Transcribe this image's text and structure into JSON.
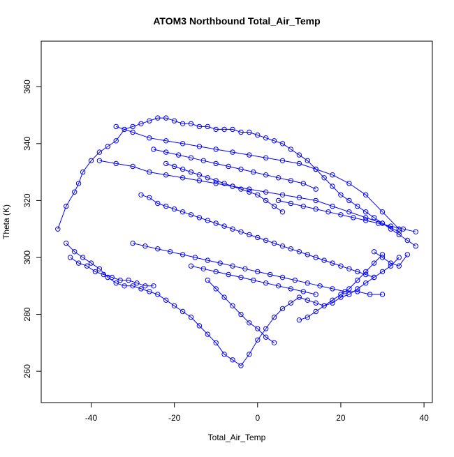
{
  "chart_data": {
    "type": "scatter",
    "title": "ATOM3 Northbound Total_Air_Temp",
    "xlabel": "Total_Air_Temp",
    "ylabel": "Theta (K)",
    "xlim": [
      -52,
      42
    ],
    "ylim": [
      249,
      376
    ],
    "x_ticks": [
      "-40",
      "-20",
      "0",
      "20",
      "40"
    ],
    "y_ticks": [
      "260",
      "280",
      "300",
      "320",
      "340",
      "360"
    ],
    "style": "points-and-lines",
    "point_marker": "open-circle",
    "colors": {
      "series": "#0000ff",
      "axis": "#000000",
      "background": "#ffffff"
    },
    "grid": false,
    "series": [
      {
        "x": [
          -48,
          -46,
          -44,
          -43,
          -42,
          -40,
          -38,
          -36,
          -34,
          -32,
          -30,
          -28,
          -26,
          -24,
          -22,
          -20,
          -18,
          -16,
          -14,
          -12,
          -10,
          -8,
          -6,
          -4,
          -2,
          0,
          2,
          4,
          6,
          8,
          10,
          12,
          14,
          16,
          18,
          20,
          22,
          24,
          26,
          28,
          30,
          32,
          34,
          36,
          38
        ],
        "y": [
          310,
          318,
          323,
          326,
          330,
          334,
          337,
          339,
          341,
          345,
          346,
          347,
          348,
          349,
          349,
          348,
          347,
          347,
          346,
          346,
          345,
          345,
          345,
          344,
          344,
          343,
          342,
          341,
          340,
          338,
          336,
          334,
          331,
          328,
          325,
          322,
          320,
          318,
          316,
          314,
          312,
          310,
          308,
          306,
          304
        ]
      },
      {
        "x": [
          -46,
          -44,
          -42,
          -40,
          -38,
          -36,
          -34,
          -32,
          -30,
          -28,
          -26,
          -24,
          -22,
          -20,
          -18,
          -16,
          -14,
          -12,
          -10,
          -8,
          -6,
          -4,
          -2,
          0,
          2,
          4,
          6,
          8,
          10,
          12,
          14,
          16,
          18,
          20,
          22,
          24,
          26,
          28,
          30,
          32,
          34
        ],
        "y": [
          305,
          302,
          300,
          298,
          296,
          293,
          291,
          290,
          290,
          289,
          288,
          287,
          285,
          283,
          281,
          279,
          276,
          273,
          270,
          266,
          264,
          262,
          266,
          271,
          275,
          279,
          282,
          284,
          286,
          285,
          284,
          283,
          284,
          286,
          287,
          289,
          291,
          293,
          295,
          297,
          300
        ]
      },
      {
        "x": [
          -38,
          -34,
          -30,
          -26,
          -22,
          -18,
          -14,
          -10,
          -6,
          -2,
          2,
          6,
          10,
          14,
          18,
          22,
          26,
          30,
          34
        ],
        "y": [
          334,
          333,
          332,
          330,
          329,
          328,
          327,
          326,
          325,
          324,
          323,
          322,
          321,
          320,
          318,
          316,
          314,
          312,
          309
        ]
      },
      {
        "x": [
          -34,
          -30,
          -26,
          -22,
          -18,
          -14,
          -10,
          -6,
          -2,
          2,
          6,
          10,
          14,
          18,
          22,
          26,
          30,
          34
        ],
        "y": [
          346,
          344,
          342,
          341,
          340,
          339,
          338,
          337,
          336,
          335,
          334,
          333,
          331,
          329,
          326,
          322,
          316,
          310
        ]
      },
      {
        "x": [
          -28,
          -26,
          -24,
          -22,
          -20,
          -18,
          -16,
          -14,
          -12,
          -10,
          -8,
          -6,
          -4,
          -2,
          0,
          2,
          4,
          6,
          8,
          10,
          12,
          14,
          16,
          18,
          20,
          22,
          24,
          26,
          28
        ],
        "y": [
          322,
          321,
          319,
          318,
          317,
          316,
          315,
          314,
          313,
          312,
          311,
          310,
          309,
          308,
          307,
          306,
          305,
          304,
          303,
          302,
          301,
          300,
          299,
          298,
          297,
          296,
          295,
          294,
          293
        ]
      },
      {
        "x": [
          -30,
          -27,
          -24,
          -21,
          -18,
          -15,
          -12,
          -9,
          -6,
          -3,
          0,
          3,
          6,
          9,
          12,
          15,
          18,
          21,
          24,
          27,
          30
        ],
        "y": [
          305,
          304,
          303,
          302,
          301,
          300,
          299,
          298,
          297,
          296,
          295,
          294,
          293,
          292,
          291,
          290,
          289,
          288,
          288,
          287,
          287
        ]
      },
      {
        "x": [
          -22,
          -20,
          -18,
          -16,
          -14,
          -12,
          -10,
          -8,
          -6,
          -4,
          -2,
          0,
          2,
          4,
          6
        ],
        "y": [
          333,
          332,
          331,
          330,
          329,
          328,
          327,
          326,
          325,
          324,
          323,
          322,
          320,
          318,
          316
        ]
      },
      {
        "x": [
          10,
          12,
          14,
          16,
          18,
          20,
          22,
          24,
          26,
          28,
          30
        ],
        "y": [
          278,
          279,
          281,
          283,
          285,
          287,
          289,
          292,
          295,
          298,
          301
        ]
      },
      {
        "x": [
          -12,
          -10,
          -8,
          -6,
          -4,
          -2,
          0,
          2,
          4
        ],
        "y": [
          292,
          289,
          286,
          283,
          280,
          277,
          275,
          272,
          270
        ]
      },
      {
        "x": [
          -45,
          -43,
          -41,
          -39,
          -37,
          -35,
          -33,
          -31,
          -29,
          -27,
          -25
        ],
        "y": [
          300,
          298,
          297,
          295,
          294,
          293,
          292,
          292,
          291,
          290,
          290
        ]
      },
      {
        "x": [
          -25,
          -22,
          -19,
          -16,
          -13,
          -10,
          -7,
          -4,
          -1,
          2,
          5,
          8,
          11,
          14
        ],
        "y": [
          338,
          337,
          336,
          335,
          334,
          333,
          332,
          331,
          330,
          329,
          328,
          327,
          326,
          324
        ]
      },
      {
        "x": [
          5,
          8,
          11,
          14,
          17,
          20,
          23,
          26,
          29,
          32,
          35,
          38
        ],
        "y": [
          320,
          319,
          318,
          317,
          316,
          315,
          314,
          313,
          312,
          311,
          310,
          309
        ]
      },
      {
        "x": [
          -16,
          -13,
          -10,
          -7,
          -4,
          -1,
          2,
          5,
          8,
          11,
          14
        ],
        "y": [
          297,
          296,
          295,
          294,
          293,
          292,
          291,
          290,
          289,
          288,
          287
        ]
      },
      {
        "x": [
          28,
          30,
          32,
          34,
          36
        ],
        "y": [
          302,
          300,
          298,
          297,
          301
        ]
      }
    ]
  }
}
